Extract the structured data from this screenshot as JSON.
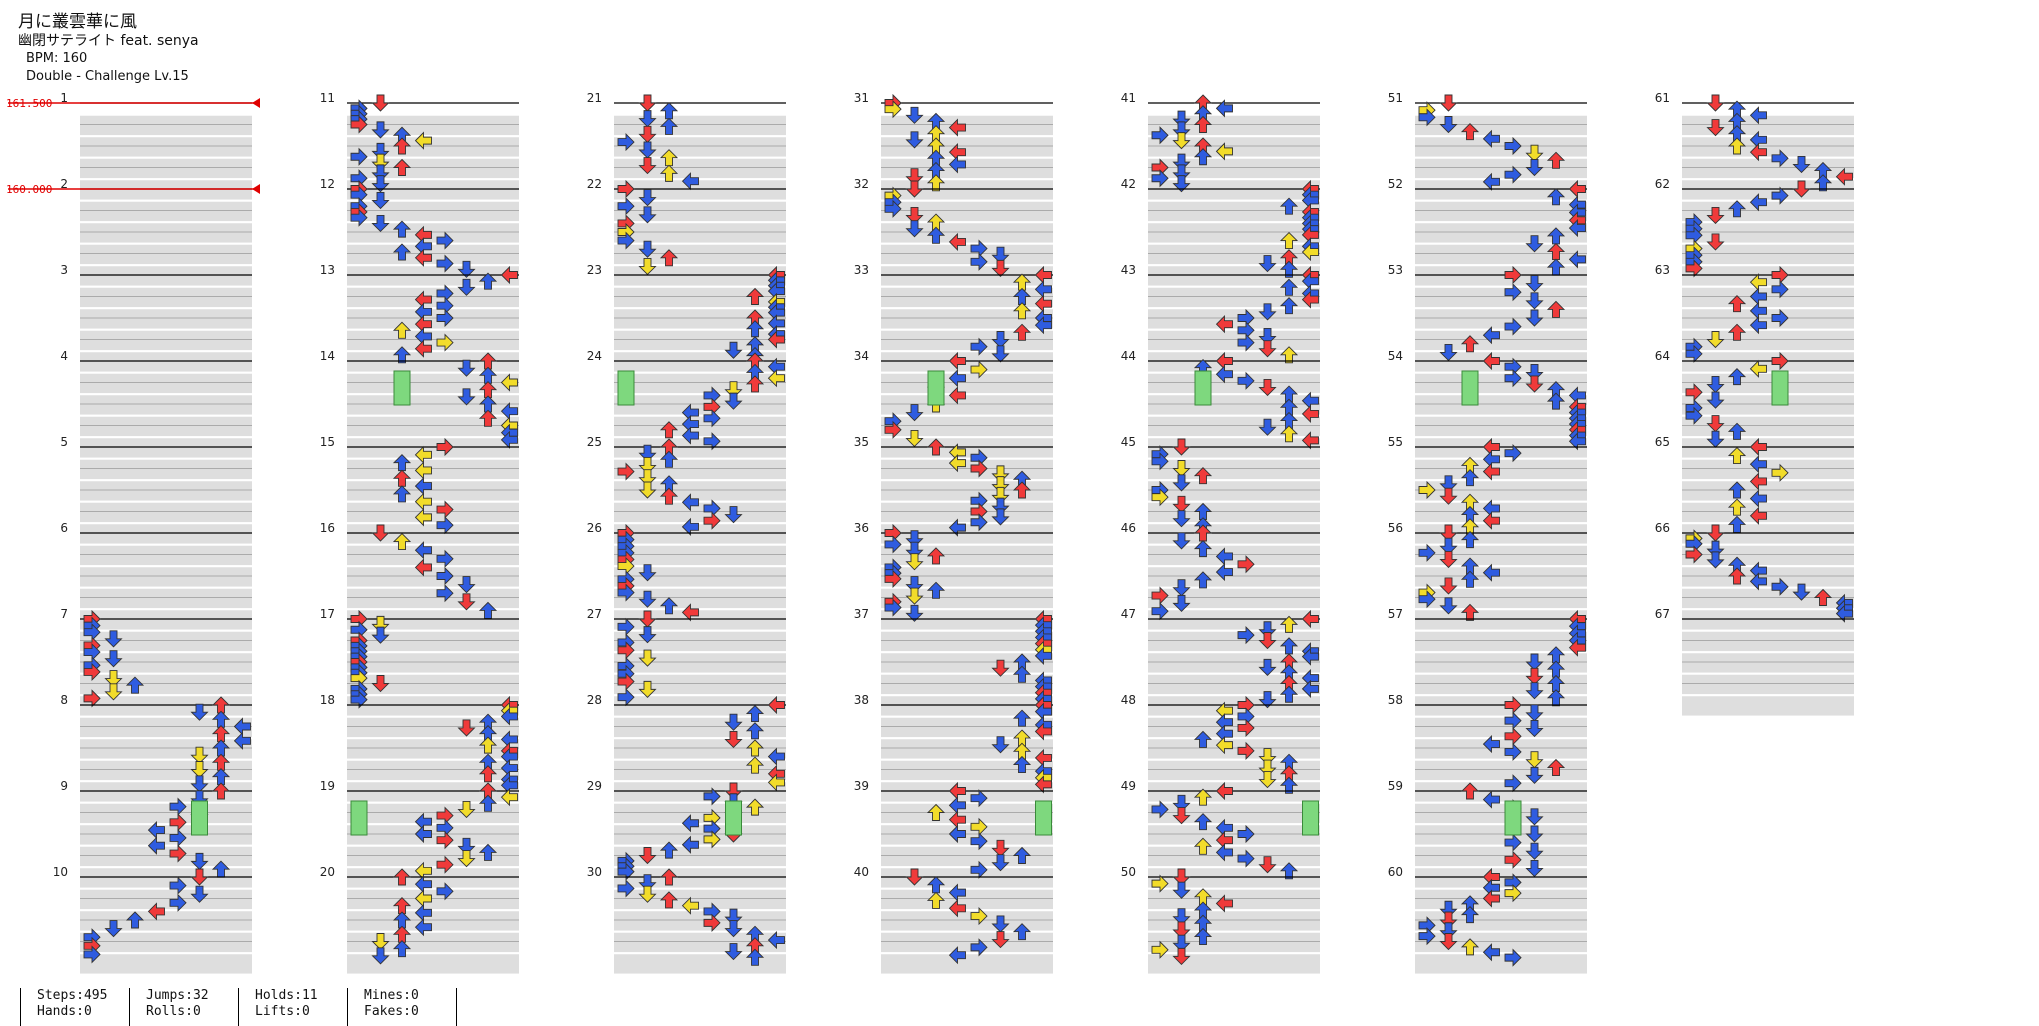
{
  "song": {
    "title": "月に叢雲華に風",
    "artist": "幽閉サテライト feat. senya",
    "bpm_text": "BPM: 160",
    "difficulty": "Double - Challenge Lv.15"
  },
  "bpm_markers": [
    {
      "value": "161.500",
      "measure": 1
    },
    {
      "value": "160.000",
      "measure": 2
    }
  ],
  "measure_count": 67,
  "measures_per_column": 10,
  "columns": 7,
  "colors": {
    "quarter": "#f03a3a",
    "eighth": "#2f5ce0",
    "sixteenth": "#f2dc2a",
    "hold": "#7ed87e",
    "band": "#dedede",
    "bpm_line": "#e00000"
  },
  "icon_names": [
    "arrow-left-icon",
    "arrow-down-icon",
    "arrow-up-icon",
    "arrow-right-icon",
    "hold-bar-icon"
  ],
  "stats": [
    {
      "a": "Steps:495",
      "b": "Hands:0"
    },
    {
      "a": "Jumps:32",
      "b": "Rolls:0"
    },
    {
      "a": "Holds:11",
      "b": "Lifts:0"
    },
    {
      "a": "Mines:0",
      "b": "Fakes:0"
    }
  ]
}
